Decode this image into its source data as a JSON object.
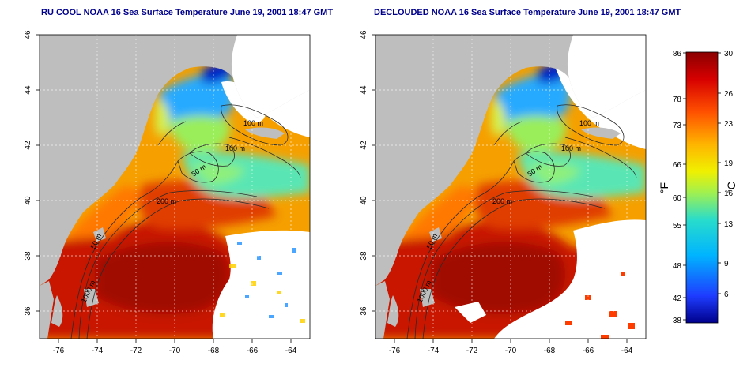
{
  "panels": [
    {
      "title": "RU COOL NOAA 16 Sea Surface Temperature June 19, 2001 18:47 GMT",
      "contour_labels": [
        "100 m",
        "100 m",
        "50 m",
        "200 m",
        "50 m",
        "1000 m"
      ]
    },
    {
      "title": "DECLOUDED NOAA 16 Sea Surface Temperature June 19, 2001 18:47 GMT",
      "contour_labels": [
        "100 m",
        "100 m",
        "50 m",
        "200 m",
        "50 m",
        "1000 m"
      ]
    }
  ],
  "axes": {
    "x_ticks": [
      "-76",
      "-74",
      "-72",
      "-70",
      "-68",
      "-66",
      "-64"
    ],
    "y_ticks": [
      "46",
      "44",
      "42",
      "40",
      "38",
      "36"
    ],
    "lon_range": [
      -77,
      -63
    ],
    "lat_range": [
      35,
      46
    ]
  },
  "colorbar": {
    "f_ticks": [
      "86",
      "78",
      "73",
      "66",
      "60",
      "55",
      "48",
      "42",
      "38"
    ],
    "c_ticks": [
      "30",
      "26",
      "23",
      "19",
      "16",
      "13",
      "9",
      "6"
    ],
    "f_label": "°F",
    "c_label": "°C",
    "scale_colors": [
      "#00008b",
      "#1e3cff",
      "#00b4ff",
      "#28dccc",
      "#a0f050",
      "#f0f000",
      "#ffb400",
      "#ff5000",
      "#d70000",
      "#8b0000"
    ]
  },
  "colors": {
    "land": "#bebebe",
    "title": "#00008b"
  }
}
